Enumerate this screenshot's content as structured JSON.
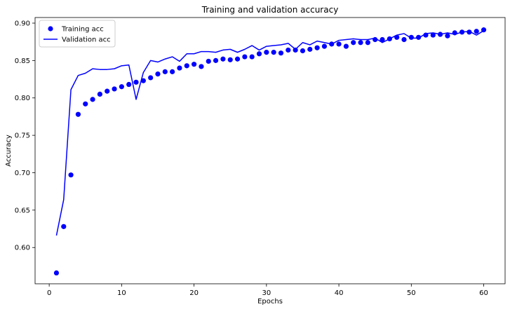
{
  "chart_data": {
    "type": "line",
    "title": "Training and validation accuracy",
    "xlabel": "Epochs",
    "ylabel": "Accuracy",
    "xlim": [
      -1.95,
      62.95
    ],
    "ylim": [
      0.5515,
      0.9075
    ],
    "xticks": [
      0,
      10,
      20,
      30,
      40,
      50,
      60
    ],
    "yticks": [
      0.6,
      0.65,
      0.7,
      0.75,
      0.8,
      0.85,
      0.9
    ],
    "grid": false,
    "legend_position": "upper-left",
    "colors": {
      "series": "#0000ff",
      "axis": "#000000"
    },
    "x": [
      1,
      2,
      3,
      4,
      5,
      6,
      7,
      8,
      9,
      10,
      11,
      12,
      13,
      14,
      15,
      16,
      17,
      18,
      19,
      20,
      21,
      22,
      23,
      24,
      25,
      26,
      27,
      28,
      29,
      30,
      31,
      32,
      33,
      34,
      35,
      36,
      37,
      38,
      39,
      40,
      41,
      42,
      43,
      44,
      45,
      46,
      47,
      48,
      49,
      50,
      51,
      52,
      53,
      54,
      55,
      56,
      57,
      58,
      59,
      60
    ],
    "series": [
      {
        "name": "Training acc",
        "style": "points",
        "values": [
          0.566,
          0.628,
          0.697,
          0.778,
          0.792,
          0.798,
          0.805,
          0.809,
          0.812,
          0.815,
          0.818,
          0.821,
          0.823,
          0.827,
          0.832,
          0.835,
          0.835,
          0.84,
          0.843,
          0.845,
          0.842,
          0.849,
          0.85,
          0.852,
          0.851,
          0.852,
          0.855,
          0.855,
          0.859,
          0.861,
          0.861,
          0.86,
          0.864,
          0.864,
          0.863,
          0.865,
          0.867,
          0.869,
          0.872,
          0.872,
          0.869,
          0.874,
          0.874,
          0.874,
          0.878,
          0.878,
          0.879,
          0.881,
          0.878,
          0.881,
          0.881,
          0.884,
          0.884,
          0.885,
          0.883,
          0.887,
          0.888,
          0.888,
          0.889,
          0.891
        ]
      },
      {
        "name": "Validation acc",
        "style": "line",
        "values": [
          0.616,
          0.664,
          0.811,
          0.83,
          0.833,
          0.839,
          0.838,
          0.838,
          0.839,
          0.843,
          0.844,
          0.798,
          0.834,
          0.85,
          0.848,
          0.852,
          0.855,
          0.849,
          0.859,
          0.859,
          0.862,
          0.862,
          0.861,
          0.864,
          0.865,
          0.861,
          0.865,
          0.87,
          0.864,
          0.869,
          0.87,
          0.871,
          0.873,
          0.865,
          0.874,
          0.871,
          0.876,
          0.874,
          0.872,
          0.877,
          0.878,
          0.879,
          0.878,
          0.878,
          0.88,
          0.874,
          0.879,
          0.884,
          0.886,
          0.88,
          0.88,
          0.886,
          0.887,
          0.885,
          0.887,
          0.885,
          0.888,
          0.889,
          0.884,
          0.89
        ]
      }
    ]
  }
}
